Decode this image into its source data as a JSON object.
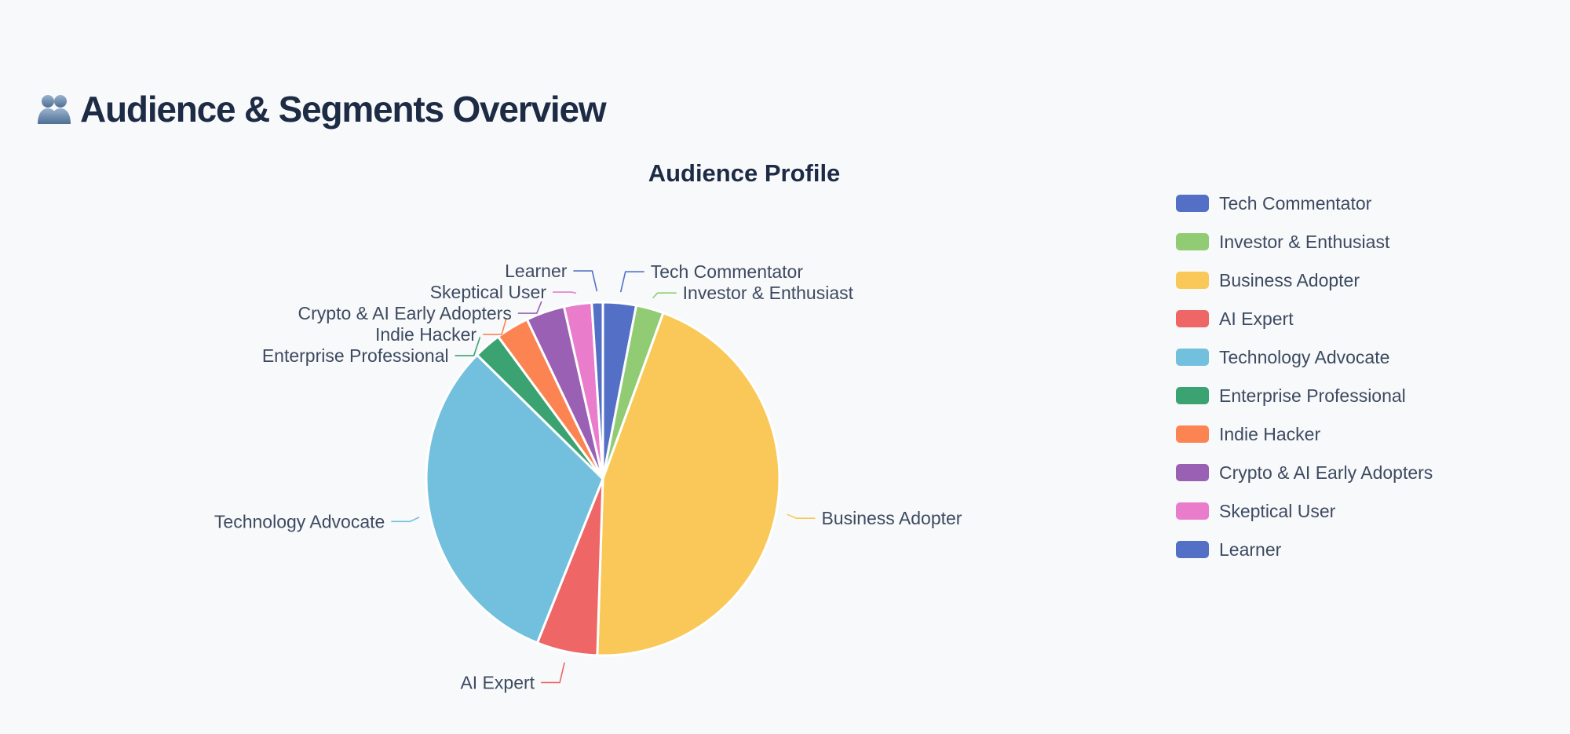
{
  "page": {
    "title": "Audience & Segments Overview",
    "title_icon": "people-icon"
  },
  "chart_data": {
    "type": "pie",
    "title": "Audience Profile",
    "legend_position": "right",
    "start_angle_deg": 0,
    "direction": "clockwise",
    "slices": [
      {
        "label": "Tech Commentator",
        "value": 3.0,
        "color": "#5470c6"
      },
      {
        "label": "Investor & Enthusiast",
        "value": 2.5,
        "color": "#91cc75"
      },
      {
        "label": "Business Adopter",
        "value": 44.5,
        "color": "#fac858"
      },
      {
        "label": "AI Expert",
        "value": 5.5,
        "color": "#ee6666"
      },
      {
        "label": "Technology Advocate",
        "value": 31.0,
        "color": "#73c0de"
      },
      {
        "label": "Enterprise Professional",
        "value": 2.5,
        "color": "#3ba272"
      },
      {
        "label": "Indie Hacker",
        "value": 3.0,
        "color": "#fc8452"
      },
      {
        "label": "Crypto & AI Early Adopters",
        "value": 3.5,
        "color": "#9a60b4"
      },
      {
        "label": "Skeptical User",
        "value": 2.5,
        "color": "#ea7ccc"
      },
      {
        "label": "Learner",
        "value": 1.0,
        "color": "#5470c6"
      }
    ]
  }
}
